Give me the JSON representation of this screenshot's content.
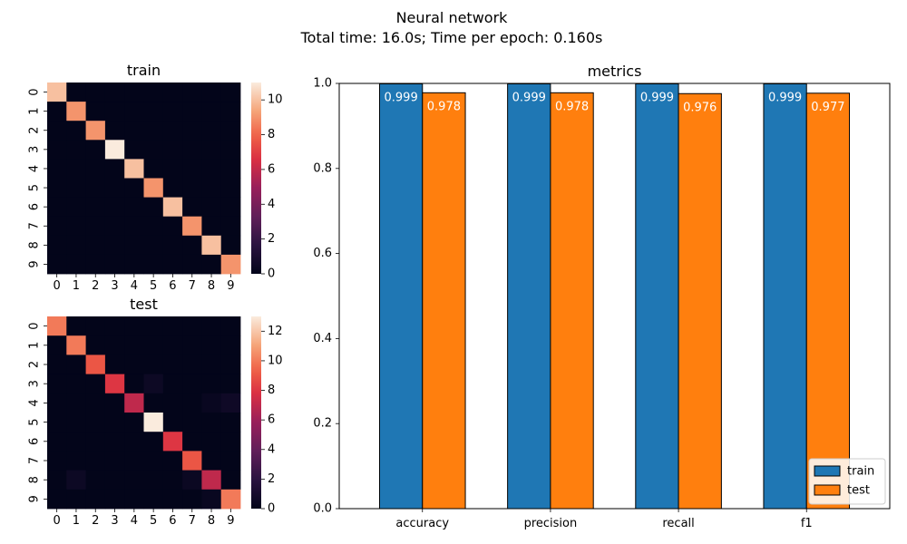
{
  "figure": {
    "title_line1": "Neural network",
    "title_line2": "Total time: 16.0s; Time per epoch: 0.160s"
  },
  "chart_data": [
    {
      "type": "heatmap",
      "title": "train",
      "x_ticks": [
        "0",
        "1",
        "2",
        "3",
        "4",
        "5",
        "6",
        "7",
        "8",
        "9"
      ],
      "y_ticks": [
        "0",
        "1",
        "2",
        "3",
        "4",
        "5",
        "6",
        "7",
        "8",
        "9"
      ],
      "colorbar": {
        "min": 0,
        "max": 11,
        "ticks": [
          0,
          2,
          4,
          6,
          8,
          10
        ]
      },
      "matrix": [
        [
          10,
          0,
          0,
          0,
          0,
          0,
          0,
          0,
          0,
          0
        ],
        [
          0,
          9,
          0,
          0,
          0,
          0,
          0,
          0,
          0,
          0
        ],
        [
          0,
          0,
          9,
          0,
          0,
          0,
          0,
          0,
          0,
          0
        ],
        [
          0,
          0,
          0,
          11,
          0,
          0,
          0,
          0,
          0,
          0
        ],
        [
          0,
          0,
          0,
          0,
          10,
          0,
          0,
          0,
          0,
          0
        ],
        [
          0,
          0,
          0,
          0,
          0,
          9,
          0,
          0,
          0,
          0
        ],
        [
          0,
          0,
          0,
          0,
          0,
          0,
          10,
          0,
          0,
          0
        ],
        [
          0,
          0,
          0,
          0,
          0,
          0,
          0,
          9,
          0,
          0
        ],
        [
          0,
          0,
          0,
          0,
          0,
          0,
          0,
          0,
          10,
          0
        ],
        [
          0,
          0,
          0,
          0,
          0,
          0,
          0,
          0,
          0,
          9
        ]
      ]
    },
    {
      "type": "heatmap",
      "title": "test",
      "x_ticks": [
        "0",
        "1",
        "2",
        "3",
        "4",
        "5",
        "6",
        "7",
        "8",
        "9"
      ],
      "y_ticks": [
        "0",
        "1",
        "2",
        "3",
        "4",
        "5",
        "6",
        "7",
        "8",
        "9"
      ],
      "colorbar": {
        "min": 0,
        "max": 13,
        "ticks": [
          0,
          2,
          4,
          6,
          8,
          10,
          12
        ]
      },
      "matrix": [
        [
          10,
          0,
          0,
          0,
          0,
          0,
          0,
          0,
          0,
          0
        ],
        [
          0,
          10,
          0,
          0,
          0,
          0,
          0,
          0,
          0,
          0
        ],
        [
          0,
          0,
          9,
          0,
          0,
          0,
          0,
          0,
          0,
          0
        ],
        [
          0,
          0,
          0,
          8,
          0,
          0.5,
          0,
          0,
          0,
          0
        ],
        [
          0,
          0,
          0,
          0,
          7,
          0,
          0,
          0,
          0.3,
          0.6
        ],
        [
          0,
          0,
          0,
          0,
          0,
          13,
          0,
          0,
          0,
          0
        ],
        [
          0,
          0,
          0,
          0,
          0,
          0,
          8,
          0,
          0,
          0
        ],
        [
          0,
          0,
          0,
          0,
          0,
          0,
          0,
          9,
          0,
          0
        ],
        [
          0,
          0.5,
          0,
          0,
          0,
          0,
          0,
          0.4,
          7,
          0
        ],
        [
          0,
          0,
          0,
          0,
          0,
          0,
          0,
          0,
          0.3,
          10
        ]
      ]
    },
    {
      "type": "bar",
      "title": "metrics",
      "categories": [
        "accuracy",
        "precision",
        "recall",
        "f1"
      ],
      "series": [
        {
          "name": "train",
          "color": "#1f77b4",
          "values": [
            0.999,
            0.999,
            0.999,
            0.999
          ],
          "labels": [
            "0.999",
            "0.999",
            "0.999",
            "0.999"
          ]
        },
        {
          "name": "test",
          "color": "#ff7f0e",
          "values": [
            0.978,
            0.978,
            0.976,
            0.977
          ],
          "labels": [
            "0.978",
            "0.978",
            "0.976",
            "0.977"
          ]
        }
      ],
      "ylim": [
        0,
        1.0
      ],
      "y_ticks": [
        "0.0",
        "0.2",
        "0.4",
        "0.6",
        "0.8",
        "1.0"
      ],
      "legend_position": "lower-right"
    }
  ]
}
